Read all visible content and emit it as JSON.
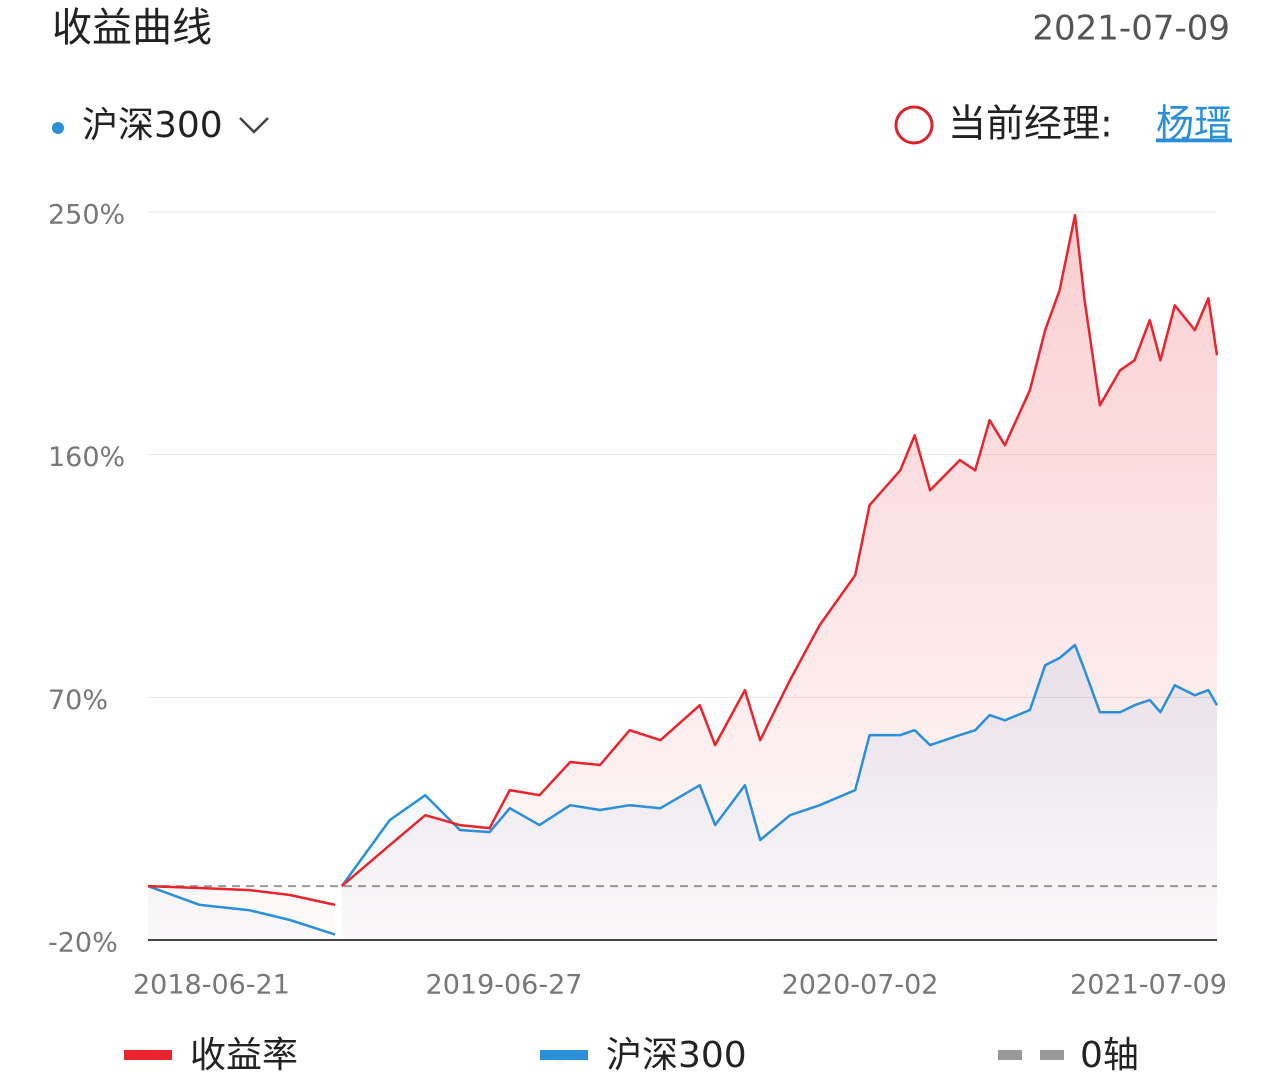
{
  "title": "收益曲线",
  "date": "2021-07-09",
  "benchmark": "沪深300",
  "manager_label": "当前经理:",
  "manager_name": "杨瑨",
  "chart_data": {
    "type": "line",
    "x": [
      "2018-06-21",
      "2018-08-14",
      "2018-10-05",
      "2018-11-16",
      "2019-01-02",
      "2019-01-05",
      "2019-01-09",
      "2019-02-28",
      "2019-04-06",
      "2019-05-12",
      "2019-06-12",
      "2019-07-03",
      "2019-08-03",
      "2019-09-04",
      "2019-10-05",
      "2019-11-05",
      "2019-12-07",
      "2020-01-17",
      "2020-02-02",
      "2020-03-04",
      "2020-03-20",
      "2020-04-20",
      "2020-05-21",
      "2020-06-27",
      "2020-07-12",
      "2020-08-13",
      "2020-08-28",
      "2020-09-13",
      "2020-10-14",
      "2020-10-30",
      "2020-11-14",
      "2020-11-30",
      "2020-12-26",
      "2021-01-11",
      "2021-01-26",
      "2021-02-11",
      "2021-02-21",
      "2021-03-09",
      "2021-03-30",
      "2021-04-14",
      "2021-04-30",
      "2021-05-11",
      "2021-05-26",
      "2021-06-16",
      "2021-06-30",
      "2021-07-09"
    ],
    "series": [
      {
        "name": "收益率",
        "color": "#e8242d",
        "values": [
          0,
          -0.7,
          -1.5,
          -3.3,
          -7,
          null,
          0,
          15.2,
          26.3,
          22.6,
          21.5,
          35.6,
          33.7,
          46,
          44.9,
          57.8,
          54.1,
          67.1,
          52.3,
          72.7,
          54.1,
          76.4,
          96.8,
          115.3,
          141.3,
          154.2,
          167.2,
          146.8,
          158,
          154.2,
          172.8,
          163.5,
          183.9,
          206.2,
          221,
          248.8,
          217.3,
          178.3,
          191.3,
          195,
          209.9,
          195,
          215.4,
          206.2,
          218,
          196.9
        ]
      },
      {
        "name": "沪深300",
        "color": "#2b8fd9",
        "values": [
          0,
          -7,
          -9,
          -12.6,
          -18,
          null,
          0,
          24.5,
          33.7,
          20.8,
          20,
          28.9,
          22.6,
          30,
          28.2,
          30,
          28.9,
          37.4,
          22.6,
          37.4,
          17.1,
          26.3,
          30,
          35.6,
          56,
          56,
          57.8,
          52.3,
          56,
          57.8,
          63.4,
          61.5,
          65.3,
          81.9,
          84.6,
          89.4,
          80.1,
          64.5,
          64.5,
          67.1,
          69,
          64.5,
          74.5,
          70.8,
          72.7,
          67.1
        ]
      }
    ],
    "zero_line": {
      "label": "0轴",
      "value": 0,
      "color": "#999999"
    },
    "xlim": [
      "2018-06-21",
      "2021-07-09"
    ],
    "xticks": [
      "2018-06-21",
      "2019-06-27",
      "2020-07-02",
      "2021-07-09"
    ],
    "ylim": [
      -20,
      250
    ],
    "yticks": [
      {
        "value": -20,
        "label": "-20%"
      },
      {
        "value": 70,
        "label": "70%"
      },
      {
        "value": 160,
        "label": "160%"
      },
      {
        "value": 250,
        "label": "250%"
      }
    ],
    "grid": true
  }
}
